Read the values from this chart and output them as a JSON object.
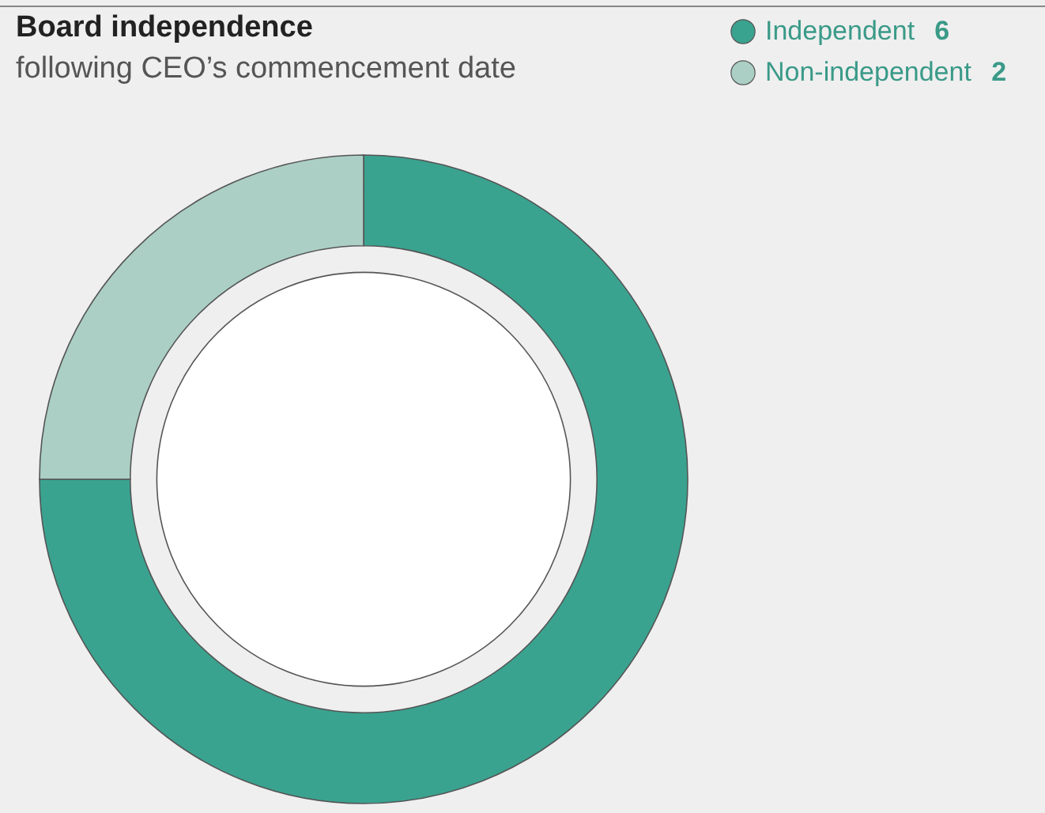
{
  "chart_data": {
    "type": "donut",
    "title": "Board independence",
    "subtitle": "following CEO’s commencement date",
    "categories": [
      "Independent",
      "Non-independent"
    ],
    "values": [
      6,
      2
    ],
    "colors": [
      "#3aa390",
      "#abcfc5"
    ],
    "legend": "top right",
    "data_labels": true
  }
}
